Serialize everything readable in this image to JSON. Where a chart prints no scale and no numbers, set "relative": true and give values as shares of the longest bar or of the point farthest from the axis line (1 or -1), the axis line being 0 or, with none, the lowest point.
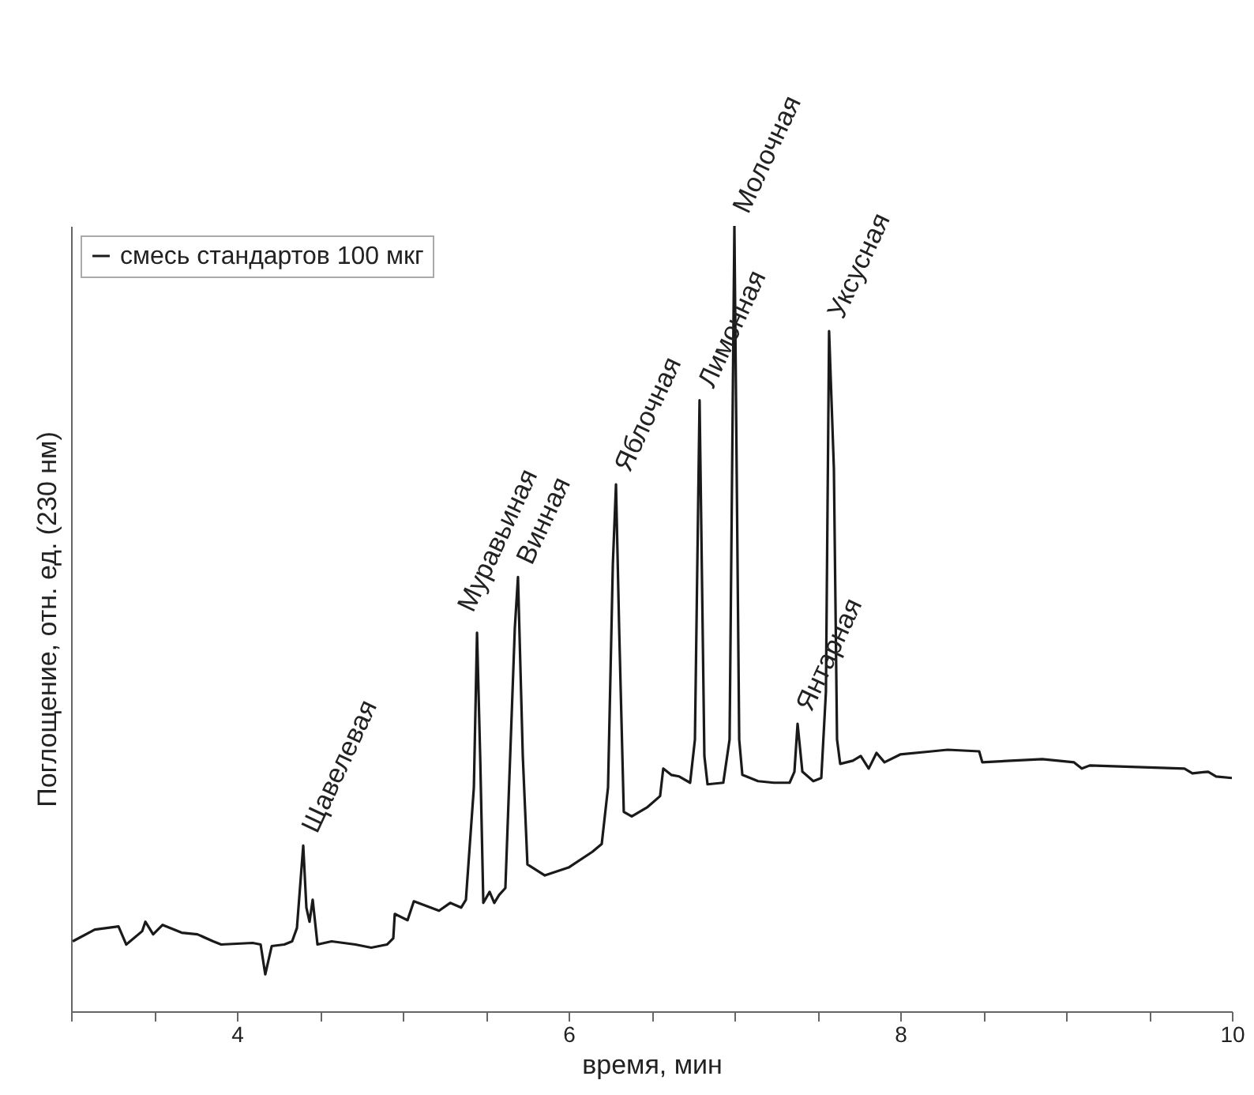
{
  "chart_data": {
    "type": "line",
    "relative": true,
    "xlabel": "время, мин",
    "ylabel": "Поглощение, отн. ед. (230 нм)",
    "xlim": [
      3,
      10
    ],
    "xticks": [
      {
        "value": 3,
        "label": null
      },
      {
        "value": 3.5,
        "label": null
      },
      4,
      {
        "value": 4.5,
        "label": null
      },
      {
        "value": 5,
        "label": null
      },
      {
        "value": 5.5,
        "label": null
      },
      6,
      {
        "value": 6.5,
        "label": null
      },
      {
        "value": 7,
        "label": null
      },
      {
        "value": 7.5,
        "label": null
      },
      8,
      {
        "value": 8.5,
        "label": null
      },
      {
        "value": 9,
        "label": null
      },
      {
        "value": 9.5,
        "label": null
      },
      10
    ],
    "legend": "top left",
    "grid": false,
    "annotations": [
      {
        "text": "Щавелевая",
        "x": 4.4,
        "y": 0.211
      },
      {
        "text": "Муравьиная",
        "x": 5.448,
        "y": 0.482
      },
      {
        "text": "Винная",
        "x": 5.695,
        "y": 0.553
      },
      {
        "text": "Яблочная",
        "x": 6.286,
        "y": 0.671
      },
      {
        "text": "Лимонная",
        "x": 6.79,
        "y": 0.778
      },
      {
        "text": "Молочная",
        "x": 7.0,
        "y": 1
      },
      {
        "text": "Янтарная",
        "x": 7.381,
        "y": 0.366
      },
      {
        "text": "Уксусная",
        "x": 7.571,
        "y": 0.866
      }
    ],
    "series": [
      {
        "name": "смесь стандартов 100 мкг",
        "color": "#1a1a1a",
        "x": [
          3.01,
          3.143,
          3.286,
          3.333,
          3.429,
          3.448,
          3.495,
          3.552,
          3.667,
          3.762,
          3.857,
          3.905,
          4.095,
          4.143,
          4.171,
          4.21,
          4.286,
          4.333,
          4.362,
          4.4,
          4.419,
          4.438,
          4.457,
          4.486,
          4.571,
          4.714,
          4.81,
          4.905,
          4.943,
          4.952,
          5.029,
          5.067,
          5.143,
          5.219,
          5.286,
          5.352,
          5.381,
          5.429,
          5.448,
          5.467,
          5.486,
          5.524,
          5.552,
          5.581,
          5.619,
          5.676,
          5.695,
          5.724,
          5.752,
          5.857,
          6.0,
          6.143,
          6.2,
          6.238,
          6.267,
          6.286,
          6.305,
          6.333,
          6.381,
          6.476,
          6.552,
          6.571,
          6.619,
          6.667,
          6.733,
          6.762,
          6.79,
          6.819,
          6.838,
          6.933,
          6.971,
          7.0,
          7.029,
          7.048,
          7.143,
          7.238,
          7.333,
          7.362,
          7.381,
          7.41,
          7.476,
          7.524,
          7.552,
          7.571,
          7.6,
          7.619,
          7.638,
          7.714,
          7.762,
          7.81,
          7.857,
          7.905,
          8.0,
          8.19,
          8.286,
          8.476,
          8.495,
          8.667,
          8.857,
          9.048,
          9.095,
          9.143,
          9.429,
          9.714,
          9.762,
          9.857,
          9.905,
          10.0
        ],
        "values": [
          0.089,
          0.104,
          0.108,
          0.085,
          0.102,
          0.114,
          0.098,
          0.11,
          0.1,
          0.098,
          0.089,
          0.085,
          0.087,
          0.085,
          0.047,
          0.083,
          0.085,
          0.089,
          0.106,
          0.211,
          0.132,
          0.114,
          0.142,
          0.085,
          0.089,
          0.085,
          0.081,
          0.085,
          0.093,
          0.124,
          0.116,
          0.14,
          0.134,
          0.128,
          0.138,
          0.132,
          0.142,
          0.285,
          0.482,
          0.325,
          0.138,
          0.152,
          0.138,
          0.148,
          0.157,
          0.488,
          0.553,
          0.325,
          0.187,
          0.173,
          0.183,
          0.203,
          0.213,
          0.285,
          0.569,
          0.671,
          0.488,
          0.254,
          0.248,
          0.26,
          0.274,
          0.309,
          0.301,
          0.299,
          0.291,
          0.346,
          0.778,
          0.325,
          0.289,
          0.291,
          0.346,
          1,
          0.346,
          0.301,
          0.293,
          0.291,
          0.291,
          0.305,
          0.366,
          0.305,
          0.293,
          0.297,
          0.407,
          0.866,
          0.691,
          0.346,
          0.315,
          0.319,
          0.325,
          0.309,
          0.329,
          0.317,
          0.327,
          0.331,
          0.333,
          0.331,
          0.317,
          0.319,
          0.321,
          0.317,
          0.309,
          0.313,
          0.311,
          0.309,
          0.303,
          0.305,
          0.299,
          0.297
        ]
      }
    ]
  }
}
